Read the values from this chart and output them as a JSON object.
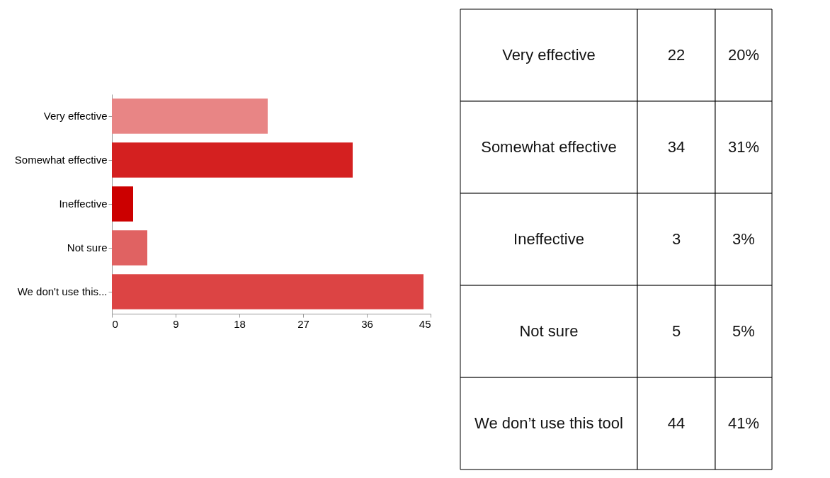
{
  "chart_data": [
    {
      "type": "bar",
      "orientation": "horizontal",
      "categories": [
        "Very effective",
        "Somewhat effective",
        "Ineffective",
        "Not sure",
        "We don't use this..."
      ],
      "values": [
        22,
        34,
        3,
        5,
        44
      ],
      "colors": [
        "#e88585",
        "#d42020",
        "#cc0000",
        "#e06262",
        "#dc4444"
      ],
      "xlim": [
        0,
        45
      ],
      "xticks": [
        0,
        9,
        18,
        27,
        36,
        45
      ],
      "grid": false
    },
    {
      "type": "other",
      "categories": [
        "Very effective",
        "Somewhat effective",
        "Ineffective",
        "Not sure",
        "We don’t use this tool"
      ],
      "annotations": [
        "22",
        "20%",
        "34",
        "31%",
        "3",
        "3%",
        "5",
        "5%",
        "44",
        "41%"
      ]
    }
  ]
}
